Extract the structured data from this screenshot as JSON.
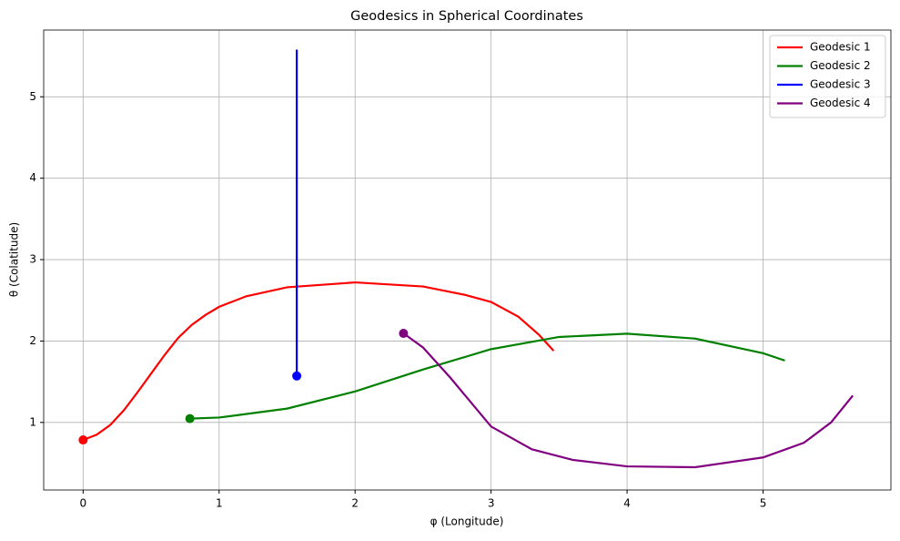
{
  "chart_data": {
    "type": "line",
    "title": "Geodesics in Spherical Coordinates",
    "x_label": "φ (Longitude)",
    "y_label": "θ (Colatitude)",
    "xlim": [
      -0.29,
      5.94
    ],
    "ylim": [
      0.17,
      5.82
    ],
    "xticks": [
      0,
      1,
      2,
      3,
      4,
      5
    ],
    "yticks": [
      1,
      2,
      3,
      4,
      5
    ],
    "grid": true,
    "legend": "upper right",
    "start_markers": true,
    "series": [
      {
        "name": "Geodesic 1",
        "color": "#ff0000",
        "x": [
          0,
          0.1,
          0.2,
          0.3,
          0.4,
          0.5,
          0.6,
          0.7,
          0.8,
          0.9,
          1.0,
          1.2,
          1.5,
          2.0,
          2.5,
          2.8,
          3.0,
          3.2,
          3.35,
          3.46
        ],
        "values": [
          0.785,
          0.85,
          0.97,
          1.15,
          1.37,
          1.6,
          1.83,
          2.04,
          2.2,
          2.32,
          2.42,
          2.55,
          2.66,
          2.72,
          2.67,
          2.57,
          2.48,
          2.3,
          2.08,
          1.88
        ]
      },
      {
        "name": "Geodesic 2",
        "color": "#008000",
        "x": [
          0.785,
          1.0,
          1.5,
          2.0,
          2.5,
          3.0,
          3.5,
          4.0,
          4.5,
          5.0,
          5.16
        ],
        "values": [
          1.047,
          1.06,
          1.17,
          1.38,
          1.65,
          1.9,
          2.05,
          2.09,
          2.03,
          1.85,
          1.76
        ]
      },
      {
        "name": "Geodesic 3",
        "color": "#0000ff",
        "x": [
          1.571,
          1.571
        ],
        "values": [
          1.571,
          5.58
        ]
      },
      {
        "name": "Geodesic 4",
        "color": "#800080",
        "x": [
          2.356,
          2.5,
          2.7,
          3.0,
          3.3,
          3.6,
          4.0,
          4.5,
          5.0,
          5.3,
          5.5,
          5.66
        ],
        "values": [
          2.094,
          1.92,
          1.55,
          0.95,
          0.67,
          0.54,
          0.46,
          0.45,
          0.57,
          0.75,
          1.0,
          1.33
        ]
      }
    ]
  }
}
